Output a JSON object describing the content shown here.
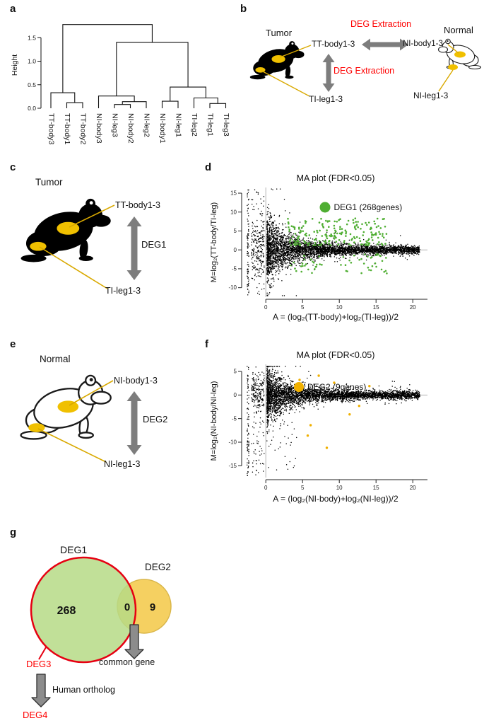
{
  "colors": {
    "red_text": "#fe0000",
    "deg1_green": "#4fae32",
    "deg2_yellow": "#f0b000",
    "venn_green_fill": "#b6db86",
    "venn_green_stroke": "#e60012",
    "venn_yellow_fill": "#f5d061",
    "venn_yellow_stroke": "#d9b64a",
    "arrow_gray": "#7d7d7d",
    "arrow_outlined_fill": "#8c8c8c",
    "arrow_outline": "#2f2f2f",
    "tumor_yellow": "#f0c000",
    "connector_yellow": "#d9a900",
    "ref_line_gray": "#b3b3b3"
  },
  "panels": {
    "a": {
      "label": "a"
    },
    "b": {
      "label": "b",
      "tumor_title": "Tumor",
      "normal_title": "Normal",
      "deg_extraction_top": "DEG Extraction",
      "deg_extraction_left": "DEG Extraction",
      "tt_body": "TT-body1-3",
      "ni_body": "NI-body1-3",
      "ti_leg": "TI-leg1-3",
      "ni_leg": "NI-leg1-3"
    },
    "c": {
      "label": "c",
      "title": "Tumor",
      "body": "TT-body1-3",
      "leg": "TI-leg1-3",
      "deg": "DEG1"
    },
    "d": {
      "label": "d"
    },
    "e": {
      "label": "e",
      "title": "Normal",
      "body": "NI-body1-3",
      "leg": "NI-leg1-3",
      "deg": "DEG2"
    },
    "f": {
      "label": "f"
    },
    "g": {
      "label": "g",
      "deg1": "DEG1",
      "deg2": "DEG2",
      "n_deg1": "268",
      "n_overlap": "0",
      "n_deg2": "9",
      "common_gene": "common gene",
      "deg3": "DEG3",
      "human_ortholog": "Human ortholog",
      "deg4": "DEG4"
    }
  },
  "chart_data": [
    {
      "type": "dendrogram",
      "panel": "a",
      "ylabel": "Height",
      "yticks": [
        0.0,
        0.5,
        1.0,
        1.5
      ],
      "ylim": [
        0,
        1.85
      ],
      "leaves": [
        "TT-body3",
        "TT-body1",
        "TT-body2",
        "NI-body3",
        "NI-leg3",
        "NI-body2",
        "NI-leg2",
        "NI-body1",
        "NI-leg1",
        "TI-leg2",
        "TI-leg1",
        "TI-leg3"
      ],
      "merges": [
        [
          "TT-body1",
          "TT-body2",
          0.12,
          "m1"
        ],
        [
          "TT-body3",
          "m1",
          0.33,
          "m2"
        ],
        [
          "NI-leg3",
          "NI-body2",
          0.08,
          "m3"
        ],
        [
          "m3",
          "NI-leg2",
          0.14,
          "m4"
        ],
        [
          "NI-body3",
          "m4",
          0.26,
          "m5"
        ],
        [
          "NI-body1",
          "NI-leg1",
          0.15,
          "m6"
        ],
        [
          "TI-leg1",
          "TI-leg3",
          0.1,
          "m7"
        ],
        [
          "TI-leg2",
          "m7",
          0.22,
          "m8"
        ],
        [
          "m6",
          "m8",
          0.45,
          "m9"
        ],
        [
          "m5",
          "m9",
          1.4,
          "m10"
        ],
        [
          "m2",
          "m10",
          1.78,
          "m11"
        ]
      ]
    },
    {
      "type": "scatter",
      "panel": "d",
      "title": "MA plot (FDR<0.05)",
      "xlabel": "A = (log₂(TT-body)+log₂(TI-leg))/2",
      "ylabel": "M=log₂(TT-body/TI-leg)",
      "xlim": [
        -3,
        22
      ],
      "ylim": [
        -12.5,
        16.5
      ],
      "xticks": [
        0,
        5,
        10,
        15,
        20
      ],
      "yticks": [
        -10,
        -5,
        0,
        5,
        10,
        15
      ],
      "legend": "DEG1 (268genes)",
      "deg_count": 268,
      "cloud_n": 4200,
      "seed": 1234
    },
    {
      "type": "scatter",
      "panel": "f",
      "title": "MA plot (FDR<0.05)",
      "xlabel": "A = (log₂(NI-body)+log₂(NI-leg))/2",
      "ylabel": "M=log₂(NI-body/NI-leg)",
      "xlim": [
        -3,
        22
      ],
      "ylim": [
        -17.5,
        6.5
      ],
      "xticks": [
        0,
        5,
        10,
        15,
        20
      ],
      "yticks": [
        -15,
        -10,
        -5,
        0,
        5
      ],
      "legend": "DEG2 (9genes)",
      "deg_count": 9,
      "deg_points": [
        [
          7.2,
          4.1
        ],
        [
          4.6,
          3.2
        ],
        [
          9.3,
          2.6
        ],
        [
          6.1,
          -6.4
        ],
        [
          12.7,
          -2.3
        ],
        [
          11.4,
          -4.1
        ],
        [
          5.7,
          -8.6
        ],
        [
          14.1,
          1.9
        ],
        [
          8.3,
          -11.2
        ]
      ],
      "cloud_n": 4200,
      "seed": 5678
    }
  ]
}
